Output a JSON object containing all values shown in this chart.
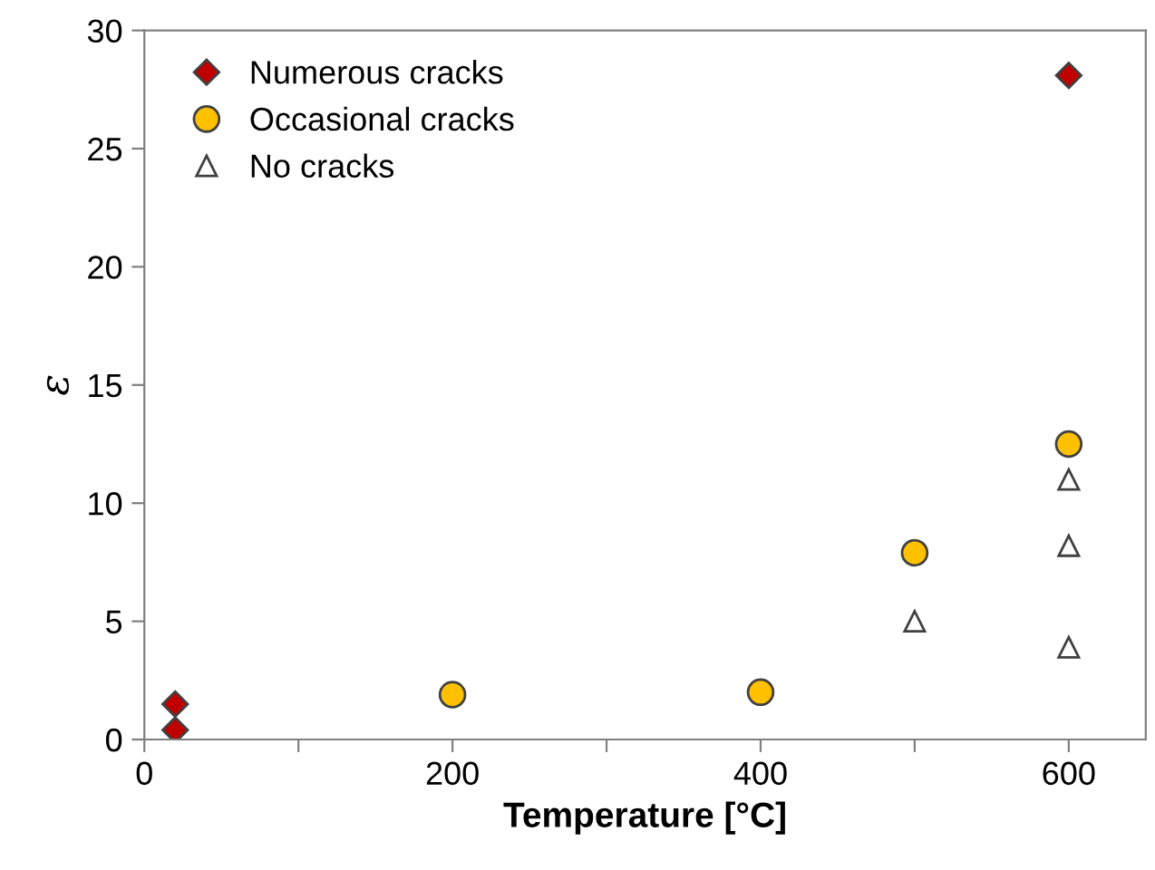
{
  "chart_data": {
    "type": "scatter",
    "xlabel": "Temperature [°C]",
    "ylabel": "ε",
    "xlim": [
      0,
      650
    ],
    "xticks": [
      0,
      {
        "value": 100,
        "label": null
      },
      200,
      {
        "value": 300,
        "label": null
      },
      400,
      {
        "value": 500,
        "label": null
      },
      600
    ],
    "ylim": [
      0,
      30
    ],
    "yticks": [
      0,
      5,
      10,
      15,
      20,
      25,
      30
    ],
    "grid": false,
    "legend": "top left",
    "series": [
      {
        "name": "Numerous cracks",
        "color": "#c00000",
        "marker": "diamond",
        "x": [
          20,
          20,
          600
        ],
        "values": [
          1.5,
          0.4,
          28.1
        ]
      },
      {
        "name": "Occasional cracks",
        "color": "#ffc000",
        "marker": "circle",
        "x": [
          200,
          400,
          500,
          600
        ],
        "values": [
          1.9,
          2.0,
          7.9,
          12.5
        ]
      },
      {
        "name": "No cracks",
        "color": "#ffffff",
        "marker": "triangle",
        "x": [
          500,
          600,
          600,
          600
        ],
        "values": [
          5.0,
          11.0,
          8.2,
          3.9
        ]
      }
    ]
  }
}
